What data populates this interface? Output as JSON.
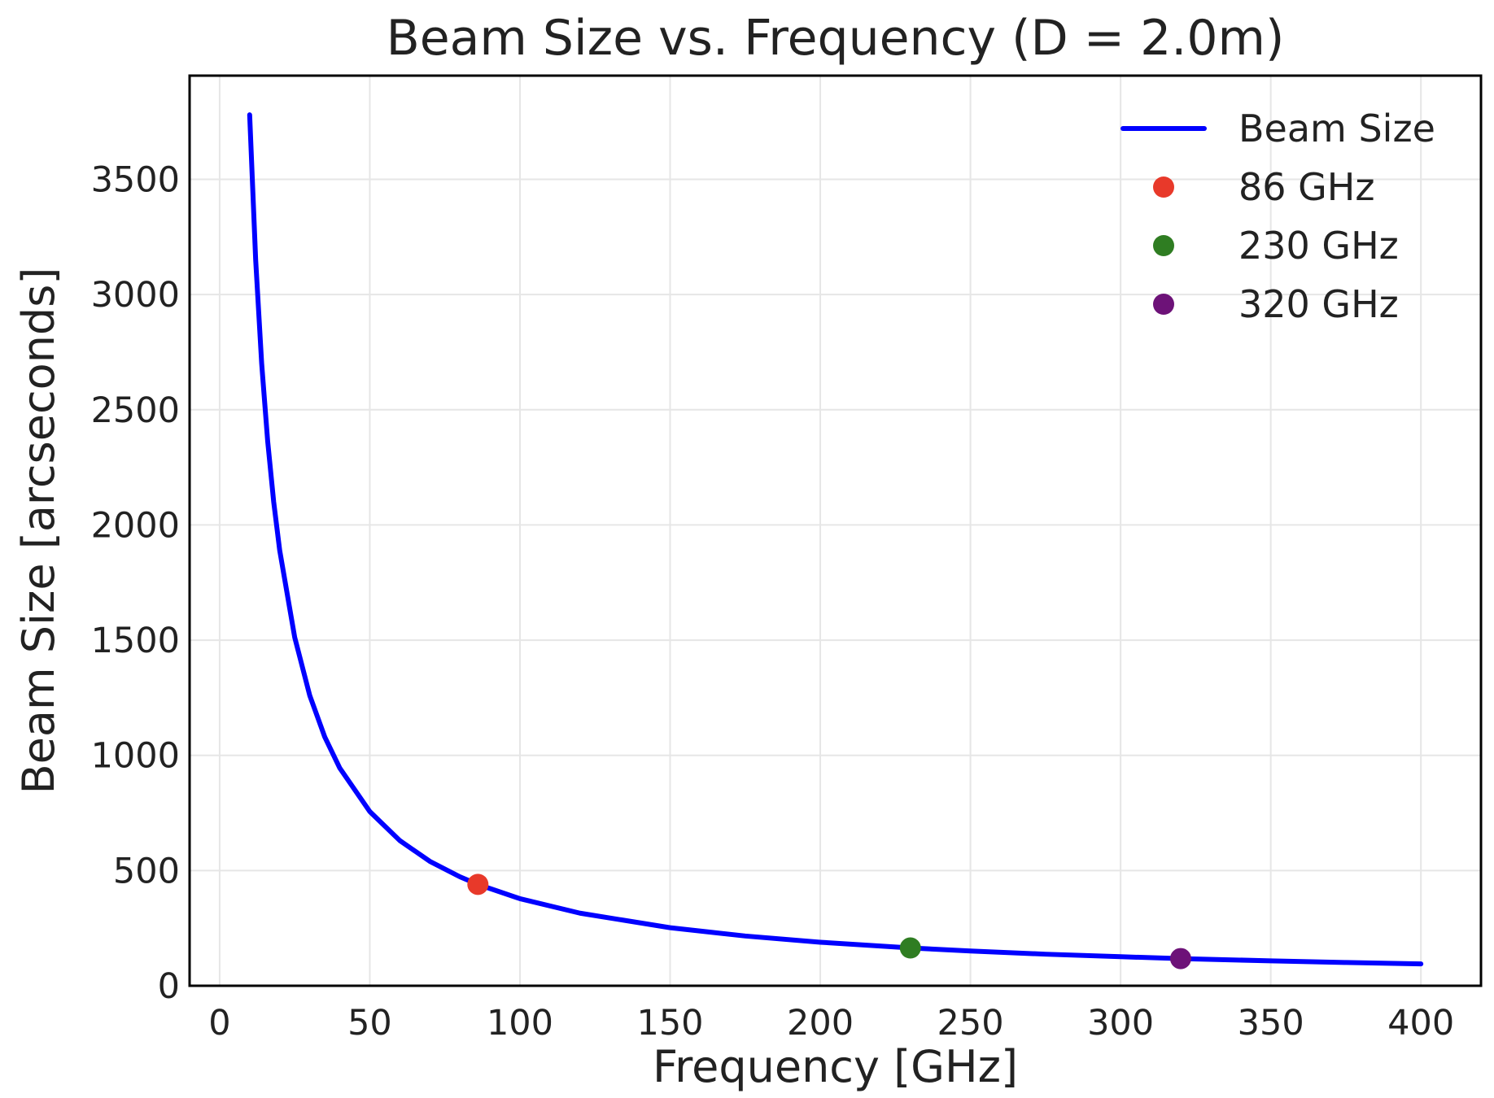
{
  "chart_data": {
    "type": "line",
    "title": "Beam Size vs. Frequency (D = 2.0m)",
    "xlabel": "Frequency [GHz]",
    "ylabel": "Beam Size [arcseconds]",
    "xlim": [
      -10,
      420
    ],
    "ylim": [
      0,
      3950
    ],
    "xticks": [
      0,
      50,
      100,
      150,
      200,
      250,
      300,
      350,
      400
    ],
    "xtick_labels": [
      "0",
      "50",
      "100",
      "150",
      "200",
      "250",
      "300",
      "350",
      "400"
    ],
    "yticks": [
      0,
      500,
      1000,
      1500,
      2000,
      2500,
      3000,
      3500
    ],
    "ytick_labels": [
      "0",
      "500",
      "1000",
      "1500",
      "2000",
      "2500",
      "3000",
      "3500"
    ],
    "grid": true,
    "legend_position": "top-right",
    "series": [
      {
        "name": "Beam Size",
        "kind": "line",
        "color": "#0000ff",
        "x": [
          10,
          12,
          14,
          16,
          18,
          20,
          25,
          30,
          35,
          40,
          50,
          60,
          70,
          80,
          86,
          100,
          120,
          150,
          175,
          200,
          230,
          250,
          275,
          300,
          320,
          350,
          375,
          400
        ],
        "y": [
          3780,
          3150,
          2700,
          2363,
          2100,
          1890,
          1512,
          1260,
          1080,
          945,
          756,
          630,
          540,
          473,
          440,
          378,
          315,
          252,
          216,
          189,
          164,
          151,
          137,
          126,
          118,
          108,
          101,
          95
        ]
      },
      {
        "name": "86 GHz",
        "kind": "point",
        "color": "#e8392a",
        "x": [
          86
        ],
        "y": [
          440
        ]
      },
      {
        "name": "230 GHz",
        "kind": "point",
        "color": "#2f7d22",
        "x": [
          230
        ],
        "y": [
          164
        ]
      },
      {
        "name": "320 GHz",
        "kind": "point",
        "color": "#6d1278",
        "x": [
          320
        ],
        "y": [
          118
        ]
      }
    ]
  }
}
